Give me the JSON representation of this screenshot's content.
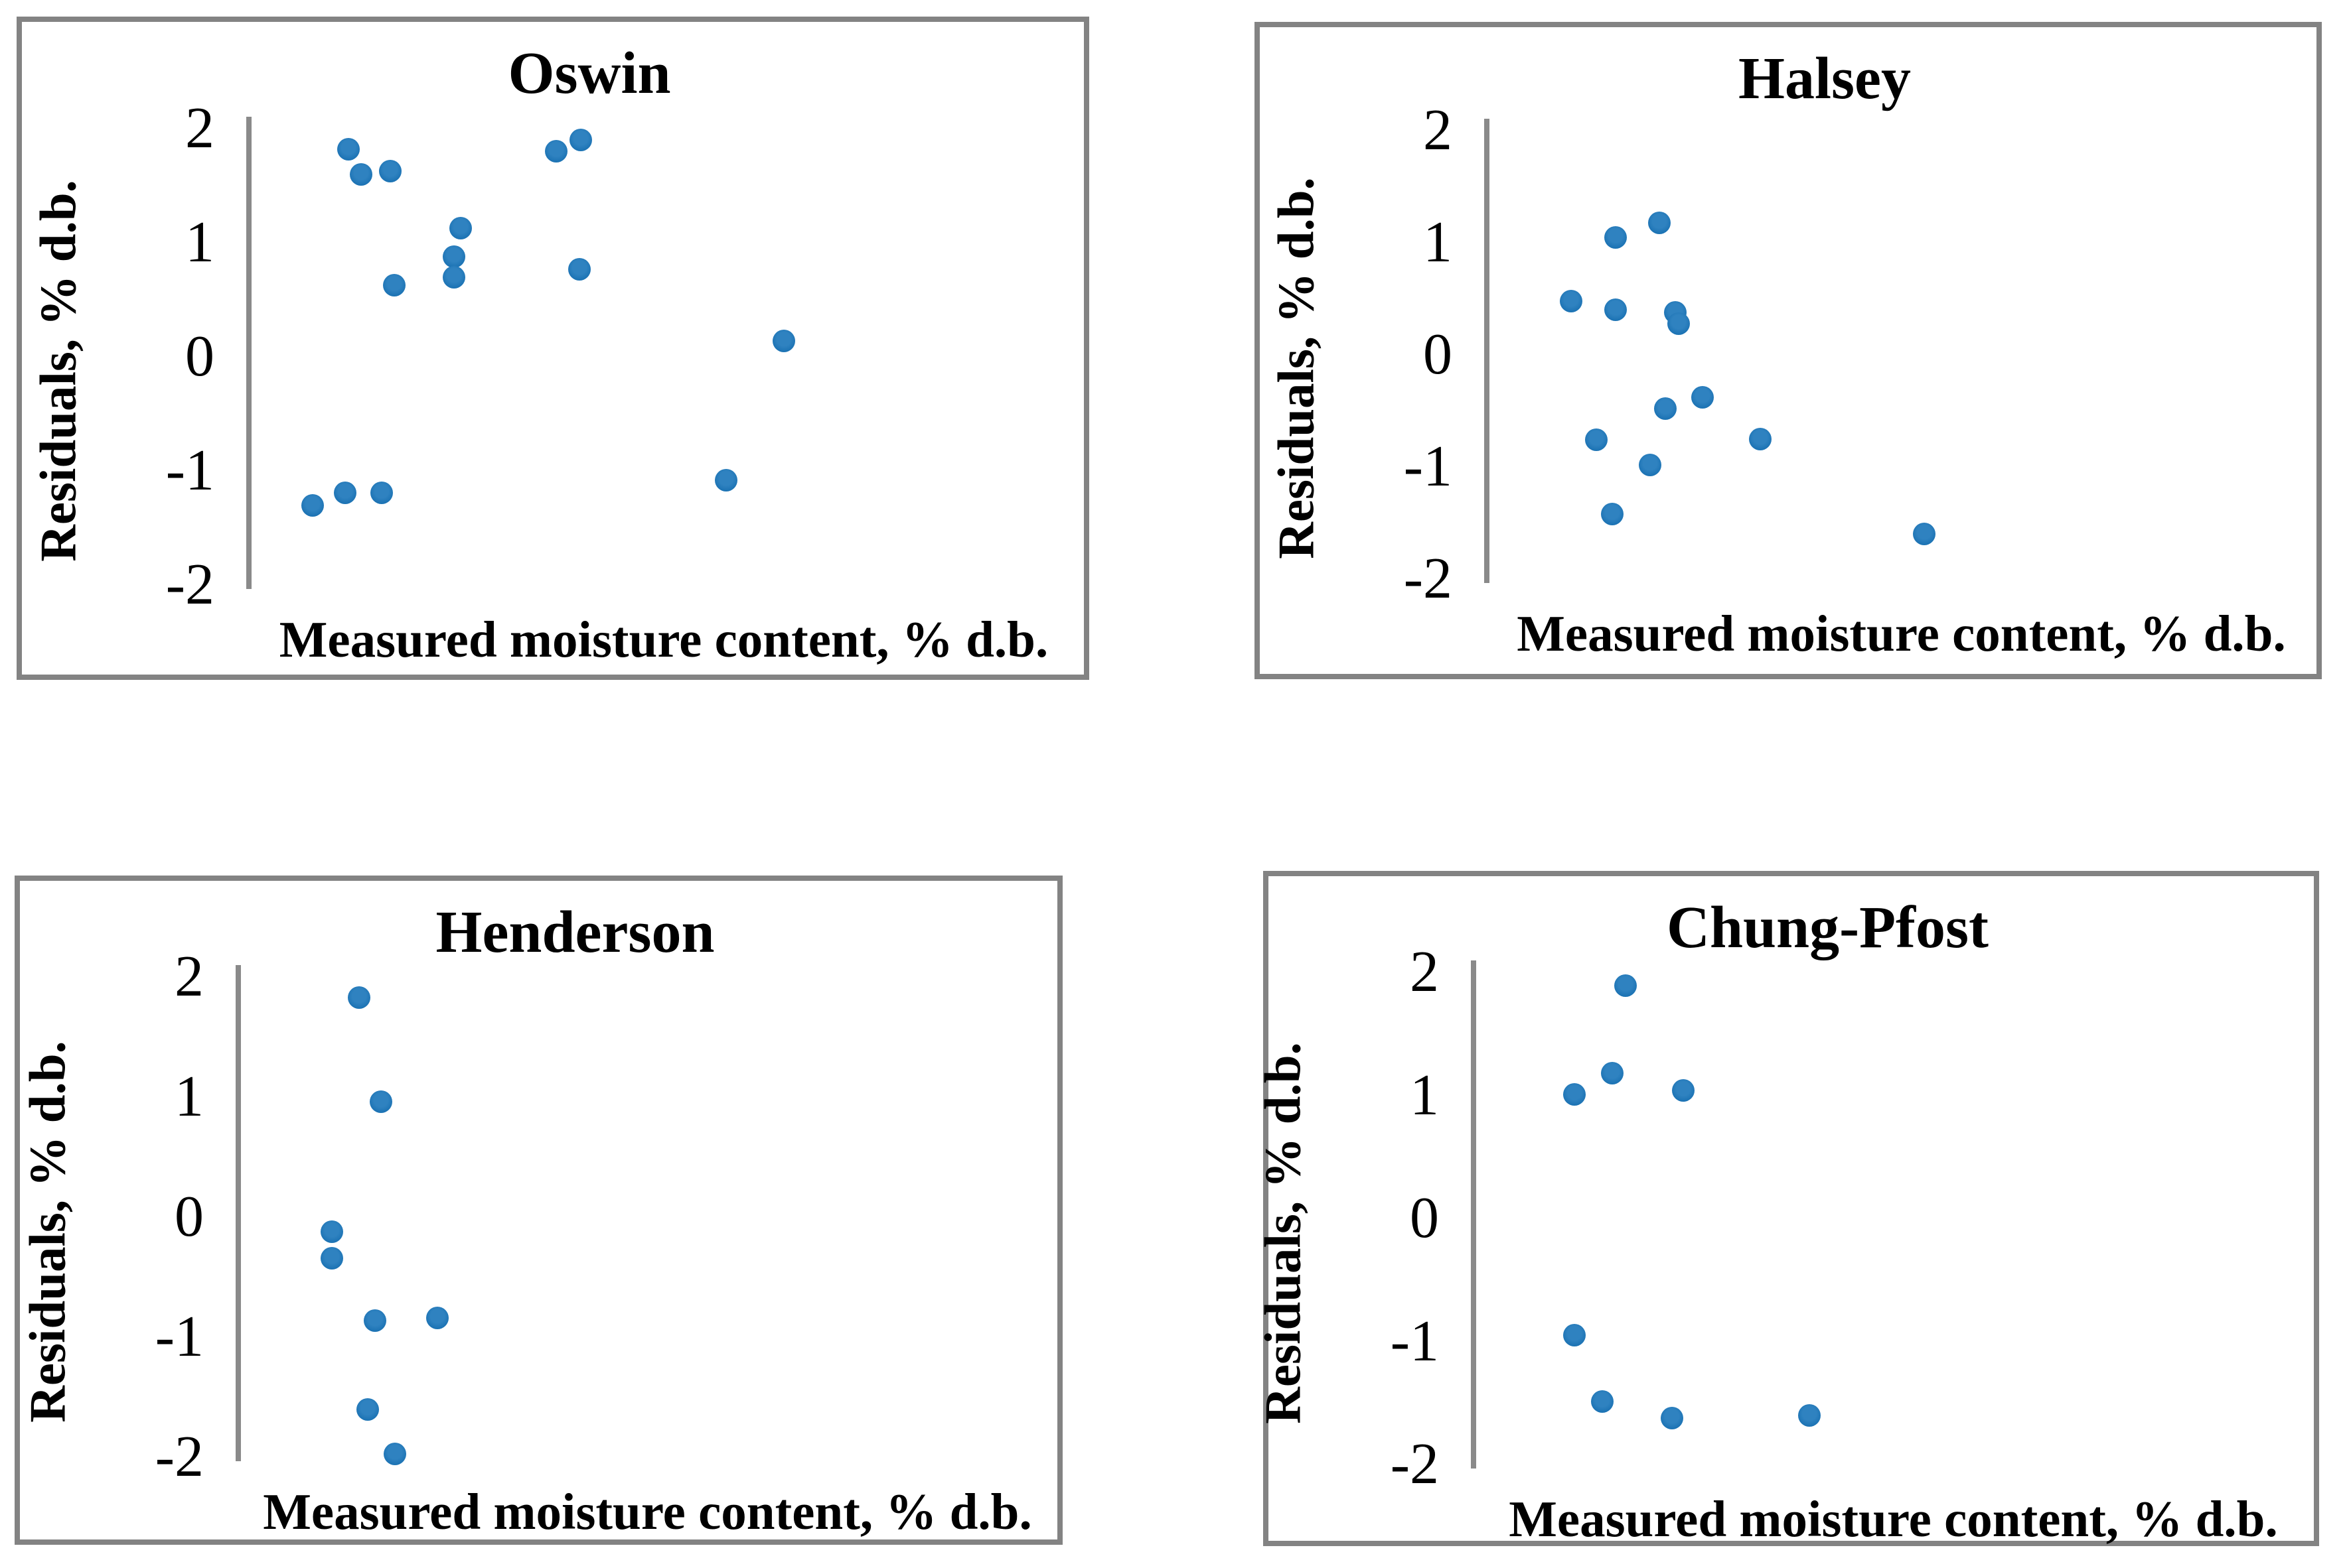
{
  "figure": {
    "background_color": "#ffffff",
    "panel_border_color": "#838383",
    "axis_line_color": "#8a8a8a",
    "point_color": "#1f77b4",
    "y_axis_label": "Residuals, % d.b.",
    "x_axis_label": "Measured moisture content, % d.b."
  },
  "chart_data": [
    {
      "type": "scatter",
      "title": "Oswin",
      "ylabel": "Residuals, % d.b.",
      "xlabel": "Measured moisture content, % d.b.",
      "ylim": [
        -2,
        2
      ],
      "y_ticks": [
        "2",
        "1",
        "0",
        "-1",
        "-2"
      ],
      "x_ticks_visible": false,
      "grid": false,
      "x_units": "fraction of plot width (x axis unlabeled)",
      "points": [
        {
          "x": 0.12,
          "y": 1.82
        },
        {
          "x": 0.135,
          "y": 1.6
        },
        {
          "x": 0.17,
          "y": 1.63
        },
        {
          "x": 0.37,
          "y": 1.8
        },
        {
          "x": 0.4,
          "y": 1.9
        },
        {
          "x": 0.255,
          "y": 1.13
        },
        {
          "x": 0.247,
          "y": 0.88
        },
        {
          "x": 0.247,
          "y": 0.7
        },
        {
          "x": 0.175,
          "y": 0.63
        },
        {
          "x": 0.398,
          "y": 0.77
        },
        {
          "x": 0.645,
          "y": 0.14
        },
        {
          "x": 0.575,
          "y": -1.08
        },
        {
          "x": 0.077,
          "y": -1.3
        },
        {
          "x": 0.116,
          "y": -1.19
        },
        {
          "x": 0.16,
          "y": -1.19
        }
      ]
    },
    {
      "type": "scatter",
      "title": "Halsey",
      "ylabel": "Residuals, % d.b.",
      "xlabel": "Measured moisture content, % d.b.",
      "ylim": [
        -2,
        2
      ],
      "y_ticks": [
        "2",
        "1",
        "0",
        "-1",
        "-2"
      ],
      "x_ticks_visible": false,
      "grid": false,
      "x_units": "fraction of plot width (x axis unlabeled)",
      "points": [
        {
          "x": 0.155,
          "y": 1.05
        },
        {
          "x": 0.208,
          "y": 1.18
        },
        {
          "x": 0.102,
          "y": 0.48
        },
        {
          "x": 0.155,
          "y": 0.4
        },
        {
          "x": 0.227,
          "y": 0.38
        },
        {
          "x": 0.231,
          "y": 0.28
        },
        {
          "x": 0.26,
          "y": -0.38
        },
        {
          "x": 0.215,
          "y": -0.48
        },
        {
          "x": 0.132,
          "y": -0.76
        },
        {
          "x": 0.33,
          "y": -0.75
        },
        {
          "x": 0.197,
          "y": -0.98
        },
        {
          "x": 0.151,
          "y": -1.42
        },
        {
          "x": 0.528,
          "y": -1.6
        }
      ]
    },
    {
      "type": "scatter",
      "title": "Henderson",
      "ylabel": "Residuals, % d.b.",
      "xlabel": "Measured moisture content, % d.b.",
      "ylim": [
        -2,
        2
      ],
      "y_ticks": [
        "2",
        "1",
        "0",
        "-1",
        "-2"
      ],
      "x_ticks_visible": false,
      "grid": false,
      "x_units": "fraction of plot width (x axis unlabeled)",
      "points": [
        {
          "x": 0.148,
          "y": 1.83
        },
        {
          "x": 0.174,
          "y": 0.96
        },
        {
          "x": 0.114,
          "y": -0.12
        },
        {
          "x": 0.114,
          "y": -0.34
        },
        {
          "x": 0.167,
          "y": -0.86
        },
        {
          "x": 0.243,
          "y": -0.84
        },
        {
          "x": 0.158,
          "y": -1.6
        },
        {
          "x": 0.191,
          "y": -1.97
        }
      ]
    },
    {
      "type": "scatter",
      "title": "Chung-Pfost",
      "ylabel": "Residuals, % d.b.",
      "xlabel": "Measured moisture content, % d.b.",
      "ylim": [
        -2,
        2
      ],
      "y_ticks": [
        "2",
        "1",
        "0",
        "-1",
        "-2"
      ],
      "x_ticks_visible": false,
      "grid": false,
      "x_units": "fraction of plot width (x axis unlabeled)",
      "points": [
        {
          "x": 0.181,
          "y": 1.89
        },
        {
          "x": 0.165,
          "y": 1.18
        },
        {
          "x": 0.12,
          "y": 1.01
        },
        {
          "x": 0.25,
          "y": 1.04
        },
        {
          "x": 0.12,
          "y": -0.95
        },
        {
          "x": 0.153,
          "y": -1.49
        },
        {
          "x": 0.236,
          "y": -1.62
        },
        {
          "x": 0.4,
          "y": -1.6
        }
      ]
    }
  ]
}
